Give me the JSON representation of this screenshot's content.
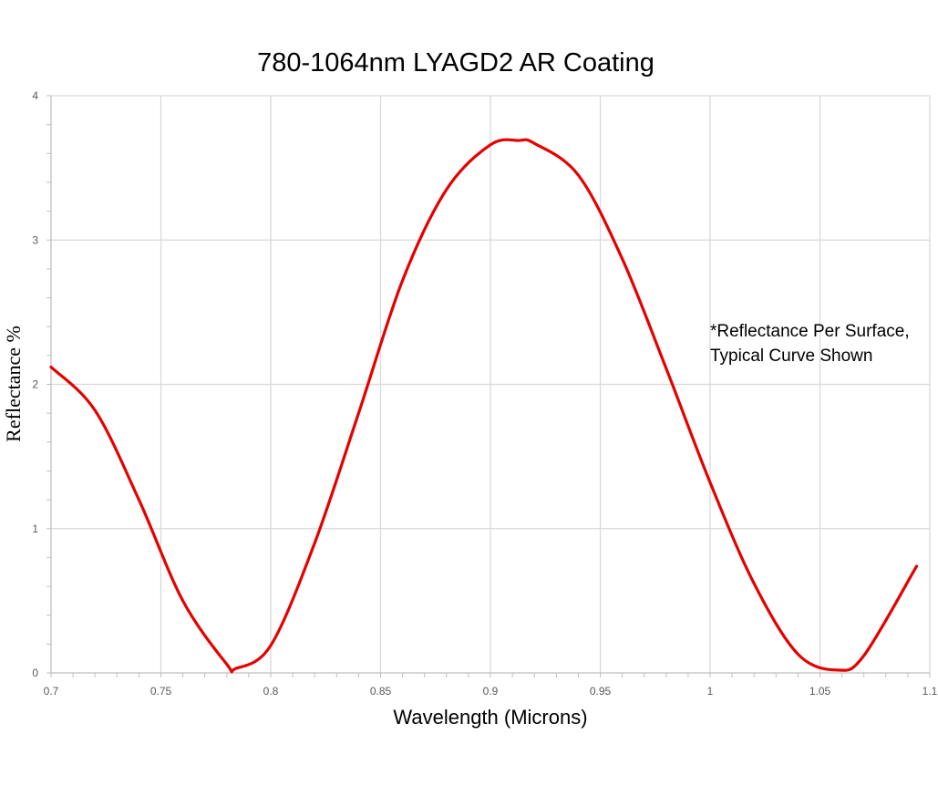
{
  "chart_data": {
    "type": "line",
    "title": "780-1064nm LYAGD2 AR Coating",
    "xlabel": "Wavelength (Microns)",
    "ylabel": "Reflectance %",
    "xlim": [
      0.7,
      1.1
    ],
    "ylim": [
      0,
      4
    ],
    "x_ticks": [
      "0.7",
      "0.75",
      "0.8",
      "0.85",
      "0.9",
      "0.95",
      "1",
      "1.05",
      "1.1"
    ],
    "y_ticks": [
      "0",
      "1",
      "2",
      "3",
      "4"
    ],
    "grid": true,
    "annotation": [
      "*Reflectance Per Surface,",
      "Typical Curve Shown"
    ],
    "series": [
      {
        "color": "#e50000",
        "x": [
          0.7,
          0.72,
          0.74,
          0.76,
          0.78,
          0.784,
          0.8,
          0.82,
          0.84,
          0.86,
          0.88,
          0.9,
          0.913,
          0.92,
          0.94,
          0.96,
          0.98,
          1.0,
          1.02,
          1.04,
          1.058,
          1.07,
          1.094
        ],
        "y": [
          2.12,
          1.82,
          1.2,
          0.5,
          0.06,
          0.03,
          0.19,
          0.9,
          1.8,
          2.72,
          3.35,
          3.66,
          3.69,
          3.67,
          3.45,
          2.87,
          2.11,
          1.32,
          0.62,
          0.13,
          0.02,
          0.12,
          0.74
        ]
      }
    ]
  }
}
